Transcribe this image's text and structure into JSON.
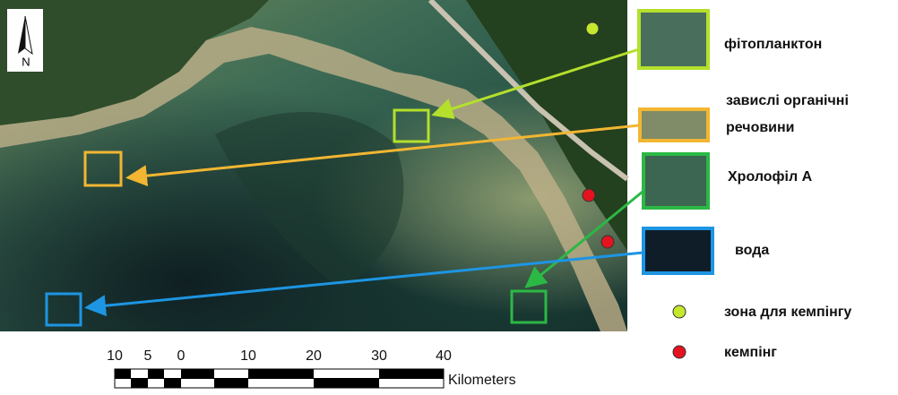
{
  "north_arrow": {
    "label": "N"
  },
  "legend": {
    "items": [
      {
        "label": "фітопланктон"
      },
      {
        "label": [
          "завислі органічні",
          "речовини"
        ]
      },
      {
        "label": "Хролофіл А"
      },
      {
        "label": "вода"
      },
      {
        "label": "зона для кемпінгу"
      },
      {
        "label": "кемпінг"
      }
    ]
  },
  "scale_bar": {
    "labels": [
      "10",
      "5",
      "0",
      "10",
      "20",
      "30",
      "40"
    ],
    "unit": "Kilometers"
  }
}
